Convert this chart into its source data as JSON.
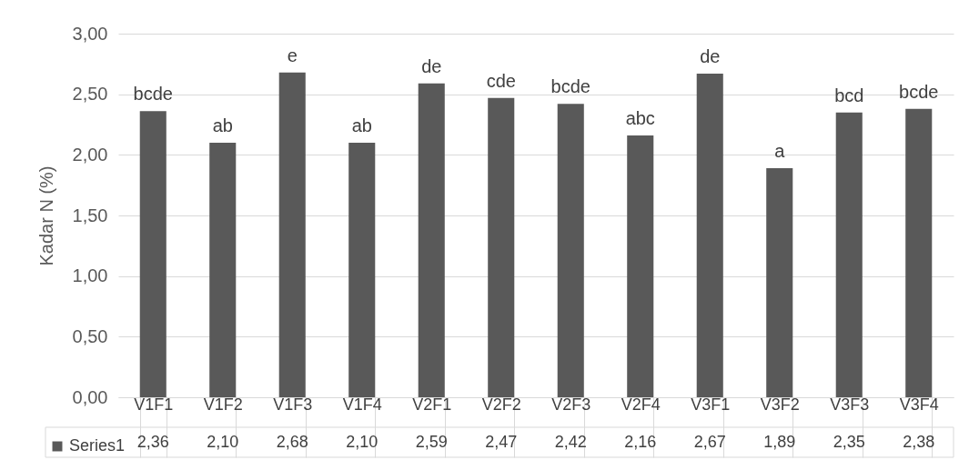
{
  "chart_data": {
    "type": "bar",
    "ylabel": "Kadar N (%)",
    "categories": [
      "V1F1",
      "V1F2",
      "V1F3",
      "V1F4",
      "V2F1",
      "V2F2",
      "V2F3",
      "V2F4",
      "V3F1",
      "V3F2",
      "V3F3",
      "V3F4"
    ],
    "series": [
      {
        "name": "Series1",
        "color": "#595959",
        "values": [
          2.36,
          2.1,
          2.68,
          2.1,
          2.59,
          2.47,
          2.42,
          2.16,
          2.67,
          1.89,
          2.35,
          2.38
        ],
        "value_labels": [
          "2,36",
          "2,10",
          "2,68",
          "2,10",
          "2,59",
          "2,47",
          "2,42",
          "2,16",
          "2,67",
          "1,89",
          "2,35",
          "2,38"
        ]
      }
    ],
    "annotations": [
      {
        "text": "bcde",
        "x": "V1F1",
        "y": 2.36
      },
      {
        "text": "ab",
        "x": "V1F2",
        "y": 2.1
      },
      {
        "text": "e",
        "x": "V1F3",
        "y": 2.68
      },
      {
        "text": "ab",
        "x": "V1F4",
        "y": 2.1
      },
      {
        "text": "de",
        "x": "V2F1",
        "y": 2.59
      },
      {
        "text": "cde",
        "x": "V2F2",
        "y": 2.47
      },
      {
        "text": "bcde",
        "x": "V2F3",
        "y": 2.42
      },
      {
        "text": "abc",
        "x": "V2F4",
        "y": 2.16
      },
      {
        "text": "de",
        "x": "V3F1",
        "y": 2.67
      },
      {
        "text": "a",
        "x": "V3F2",
        "y": 1.89
      },
      {
        "text": "bcd",
        "x": "V3F3",
        "y": 2.35
      },
      {
        "text": "bcde",
        "x": "V3F4",
        "y": 2.38
      }
    ],
    "ylim": [
      0,
      3
    ],
    "yticks": [
      {
        "value": 0,
        "label": "0,00"
      },
      {
        "value": 0.5,
        "label": "0,50"
      },
      {
        "value": 1,
        "label": "1,00"
      },
      {
        "value": 1.5,
        "label": "1,50"
      },
      {
        "value": 2,
        "label": "2,00"
      },
      {
        "value": 2.5,
        "label": "2,50"
      },
      {
        "value": 3,
        "label": "3,00"
      }
    ],
    "grid": "y",
    "legend": "bottom"
  }
}
